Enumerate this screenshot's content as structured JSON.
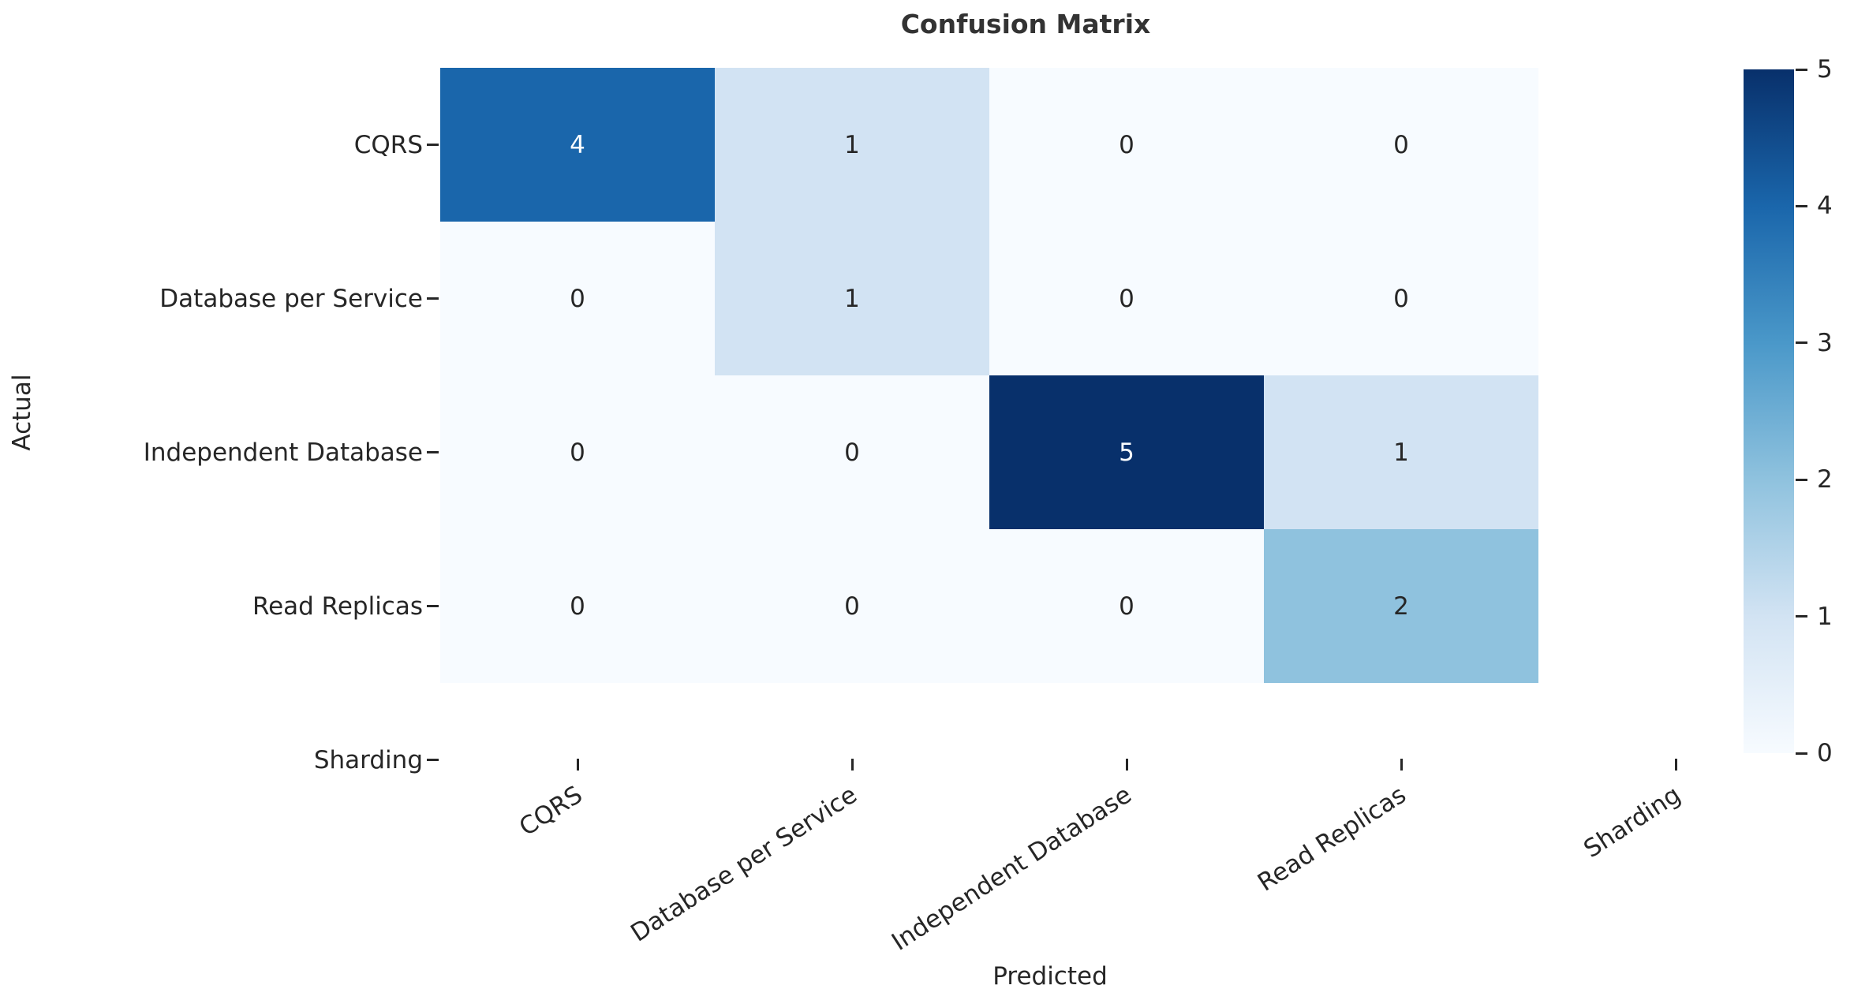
{
  "chart_data": {
    "type": "heatmap",
    "title": "Confusion Matrix",
    "xlabel": "Predicted",
    "ylabel": "Actual",
    "x_ticklabels": [
      "CQRS",
      "Database per Service",
      "Independent Database",
      "Read Replicas",
      "Sharding"
    ],
    "y_ticklabels": [
      "CQRS",
      "Database per Service",
      "Independent Database",
      "Read Replicas",
      "Sharding"
    ],
    "matrix": [
      [
        4,
        1,
        0,
        0
      ],
      [
        0,
        1,
        0,
        0
      ],
      [
        0,
        0,
        5,
        1
      ],
      [
        0,
        0,
        0,
        2
      ]
    ],
    "blank_row_col": "Sharding",
    "colormap": "Blues",
    "vmin": 0,
    "vmax": 5,
    "value_colors": {
      "0": "#f7fbff",
      "1": "#d2e3f3",
      "2": "#8fc2de",
      "4": "#1a66ab",
      "5": "#08306b"
    },
    "white_text_values": [
      4,
      5
    ],
    "annotation_dark_text_color": "#262626",
    "annotation_light_text_color": "#fafdff",
    "colorbar": {
      "ticklabels": [
        "5",
        "4",
        "3",
        "2",
        "1",
        "0"
      ],
      "gradient_bottom_to_top": [
        "#f7fbff",
        "#d2e3f3",
        "#8fc2de",
        "#4a98c9",
        "#1a66ab",
        "#08306b"
      ]
    }
  }
}
